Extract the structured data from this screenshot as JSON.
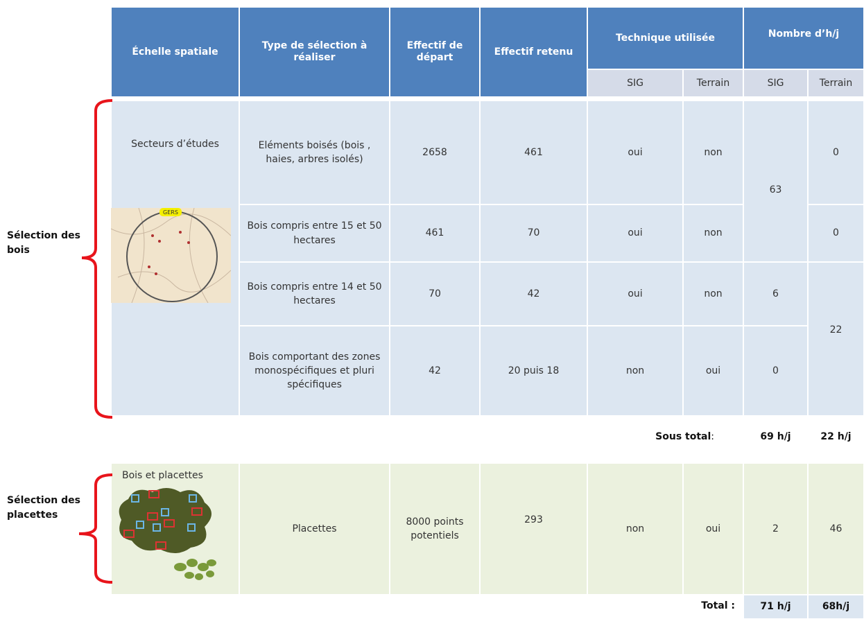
{
  "table": {
    "header": {
      "columns": [
        "Échelle spatiale",
        "Type  de sélection à réaliser",
        "Effectif de départ",
        "Effectif retenu",
        "Technique utilisée",
        "Nombre d’h/j"
      ],
      "subcolumns": [
        "SIG",
        "Terrain",
        "SIG",
        "Terrain"
      ]
    },
    "groups": [
      {
        "label": "Sélection des bois",
        "scale": "Secteurs d’études",
        "map_label": "GERS",
        "rows": [
          {
            "type": "Eléments boisés  (bois , haies, arbres isolés)",
            "start": "2658",
            "kept": "461",
            "sig": "oui",
            "terrain": "non"
          },
          {
            "type": "Bois compris entre 15 et 50 hectares",
            "start": "461",
            "kept": "70",
            "sig": "oui",
            "terrain": "non"
          },
          {
            "type": "Bois compris entre 14 et 50 hectares",
            "start": "70",
            "kept": "42",
            "sig": "oui",
            "terrain": "non"
          },
          {
            "type": "Bois  comportant des zones monospécifiques et pluri spécifiques",
            "start": "42",
            "kept": "20 puis 18",
            "sig": "non",
            "terrain": "oui"
          }
        ],
        "hj_sig": [
          "63",
          "6",
          "0"
        ],
        "hj_terrain": [
          "0",
          "0",
          "22"
        ]
      },
      {
        "label": "Sélection des placettes",
        "scale": "Bois et placettes",
        "rows": [
          {
            "type": "Placettes",
            "start": "8000 points potentiels",
            "kept": "293",
            "sig": "non",
            "terrain": "oui"
          }
        ],
        "hj_sig": [
          "2"
        ],
        "hj_terrain": [
          "46"
        ]
      }
    ],
    "subtotal": {
      "label": "Sous total",
      "sep": ":",
      "sig": "69 h/j",
      "terrain": "22 h/j"
    },
    "total": {
      "label": "Total :",
      "sig": "71 h/j",
      "terrain": "68h/j"
    }
  }
}
